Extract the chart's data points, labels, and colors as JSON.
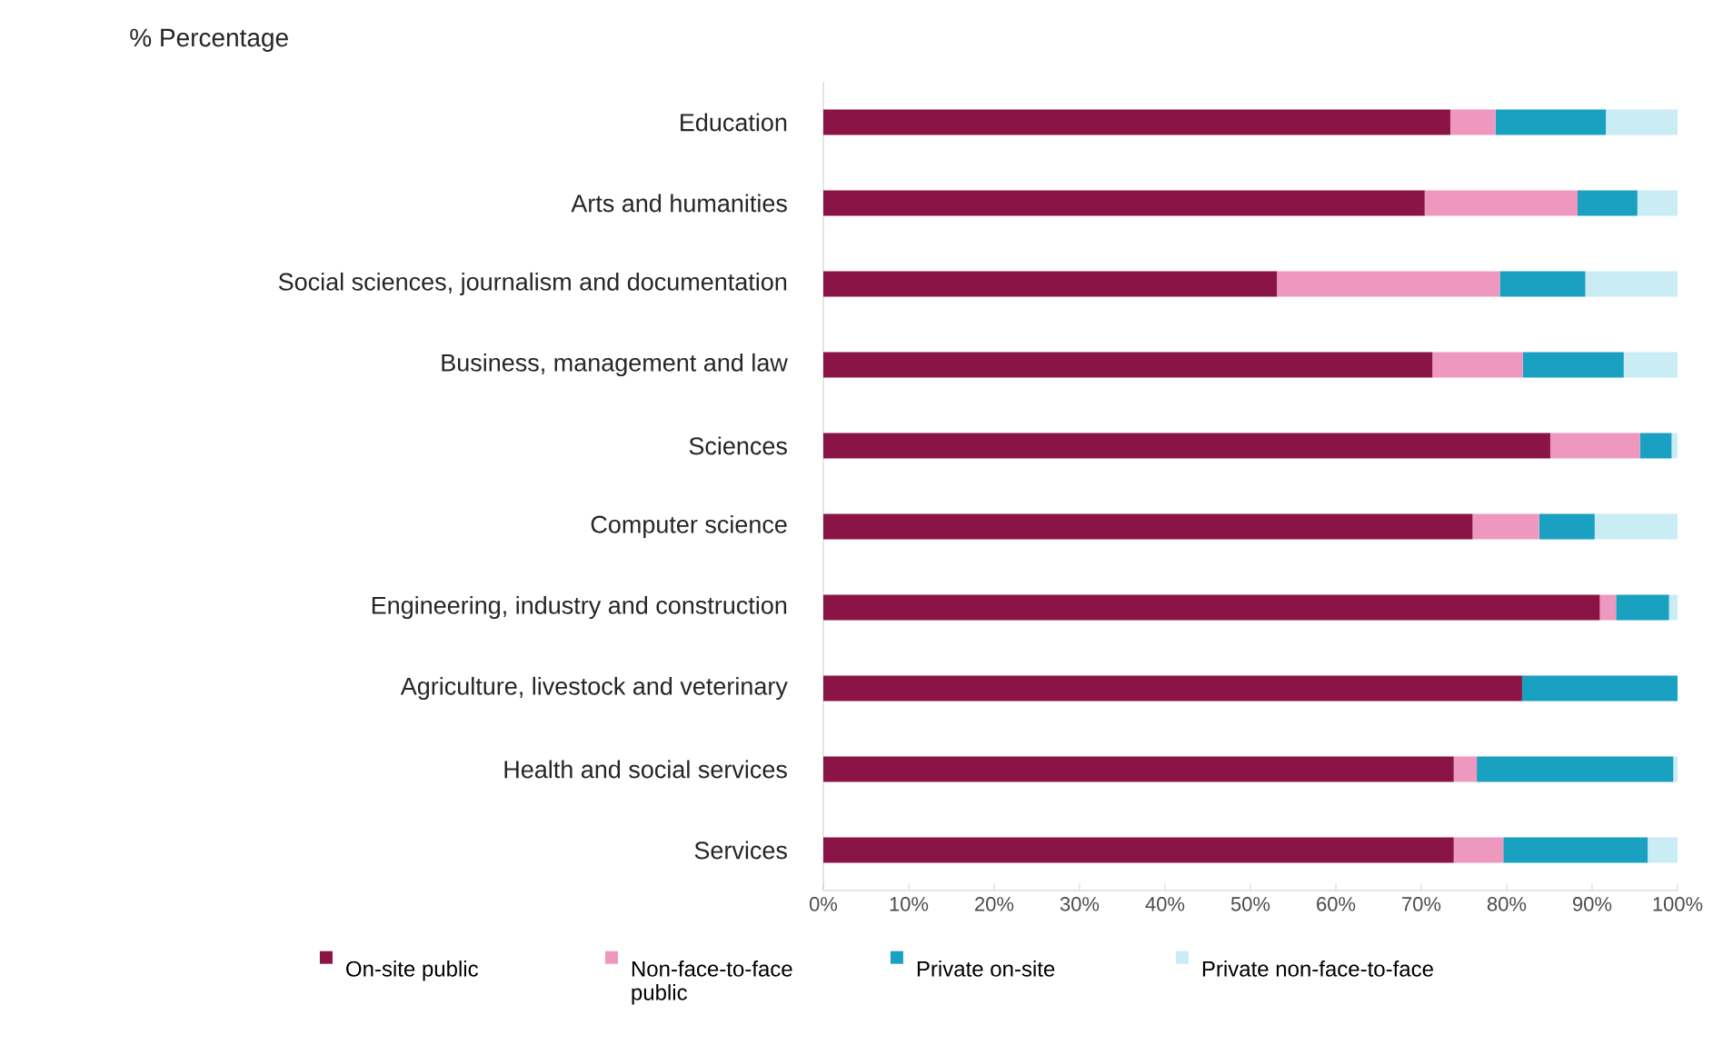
{
  "chart_data": {
    "type": "bar",
    "orientation": "horizontal",
    "stacked": true,
    "title": "% Percentage",
    "categories": [
      "Education",
      "Arts and humanities",
      "Social sciences, journalism and documentation",
      "Business, management and law",
      "Sciences",
      "Computer science",
      "Engineering, industry and construction",
      "Agriculture, livestock and veterinary",
      "Health and social services",
      "Services"
    ],
    "series": [
      {
        "name": "On-site public",
        "color": "#8b1446",
        "values": [
          73.4,
          70.4,
          53.1,
          71.3,
          85.1,
          76.0,
          90.9,
          81.8,
          73.8,
          73.8
        ]
      },
      {
        "name": "Non-face-to-face public",
        "color": "#ef98bf",
        "values": [
          5.3,
          17.9,
          26.1,
          10.6,
          10.5,
          7.8,
          1.9,
          0,
          2.7,
          5.8
        ]
      },
      {
        "name": "Private on-site",
        "color": "#1aa0c0",
        "values": [
          12.9,
          7.0,
          10.0,
          11.8,
          3.7,
          6.5,
          6.2,
          18.2,
          23.0,
          16.9
        ]
      },
      {
        "name": "Private non-face-to-face",
        "color": "#c9ecf5",
        "values": [
          8.4,
          4.7,
          10.8,
          6.3,
          0.7,
          9.7,
          1.0,
          0,
          0.5,
          3.5
        ]
      }
    ],
    "xlim": [
      0,
      100
    ],
    "xticks": [
      {
        "value": 0,
        "label": "0%"
      },
      {
        "value": 10,
        "label": "10%"
      },
      {
        "value": 20,
        "label": "20%"
      },
      {
        "value": 30,
        "label": "30%"
      },
      {
        "value": 40,
        "label": "40%"
      },
      {
        "value": 50,
        "label": "50%"
      },
      {
        "value": 60,
        "label": "60%"
      },
      {
        "value": 70,
        "label": "70%"
      },
      {
        "value": 80,
        "label": "80%"
      },
      {
        "value": 90,
        "label": "90%"
      },
      {
        "value": 100,
        "label": "100%"
      }
    ],
    "grid": false,
    "legend": "bottom"
  }
}
